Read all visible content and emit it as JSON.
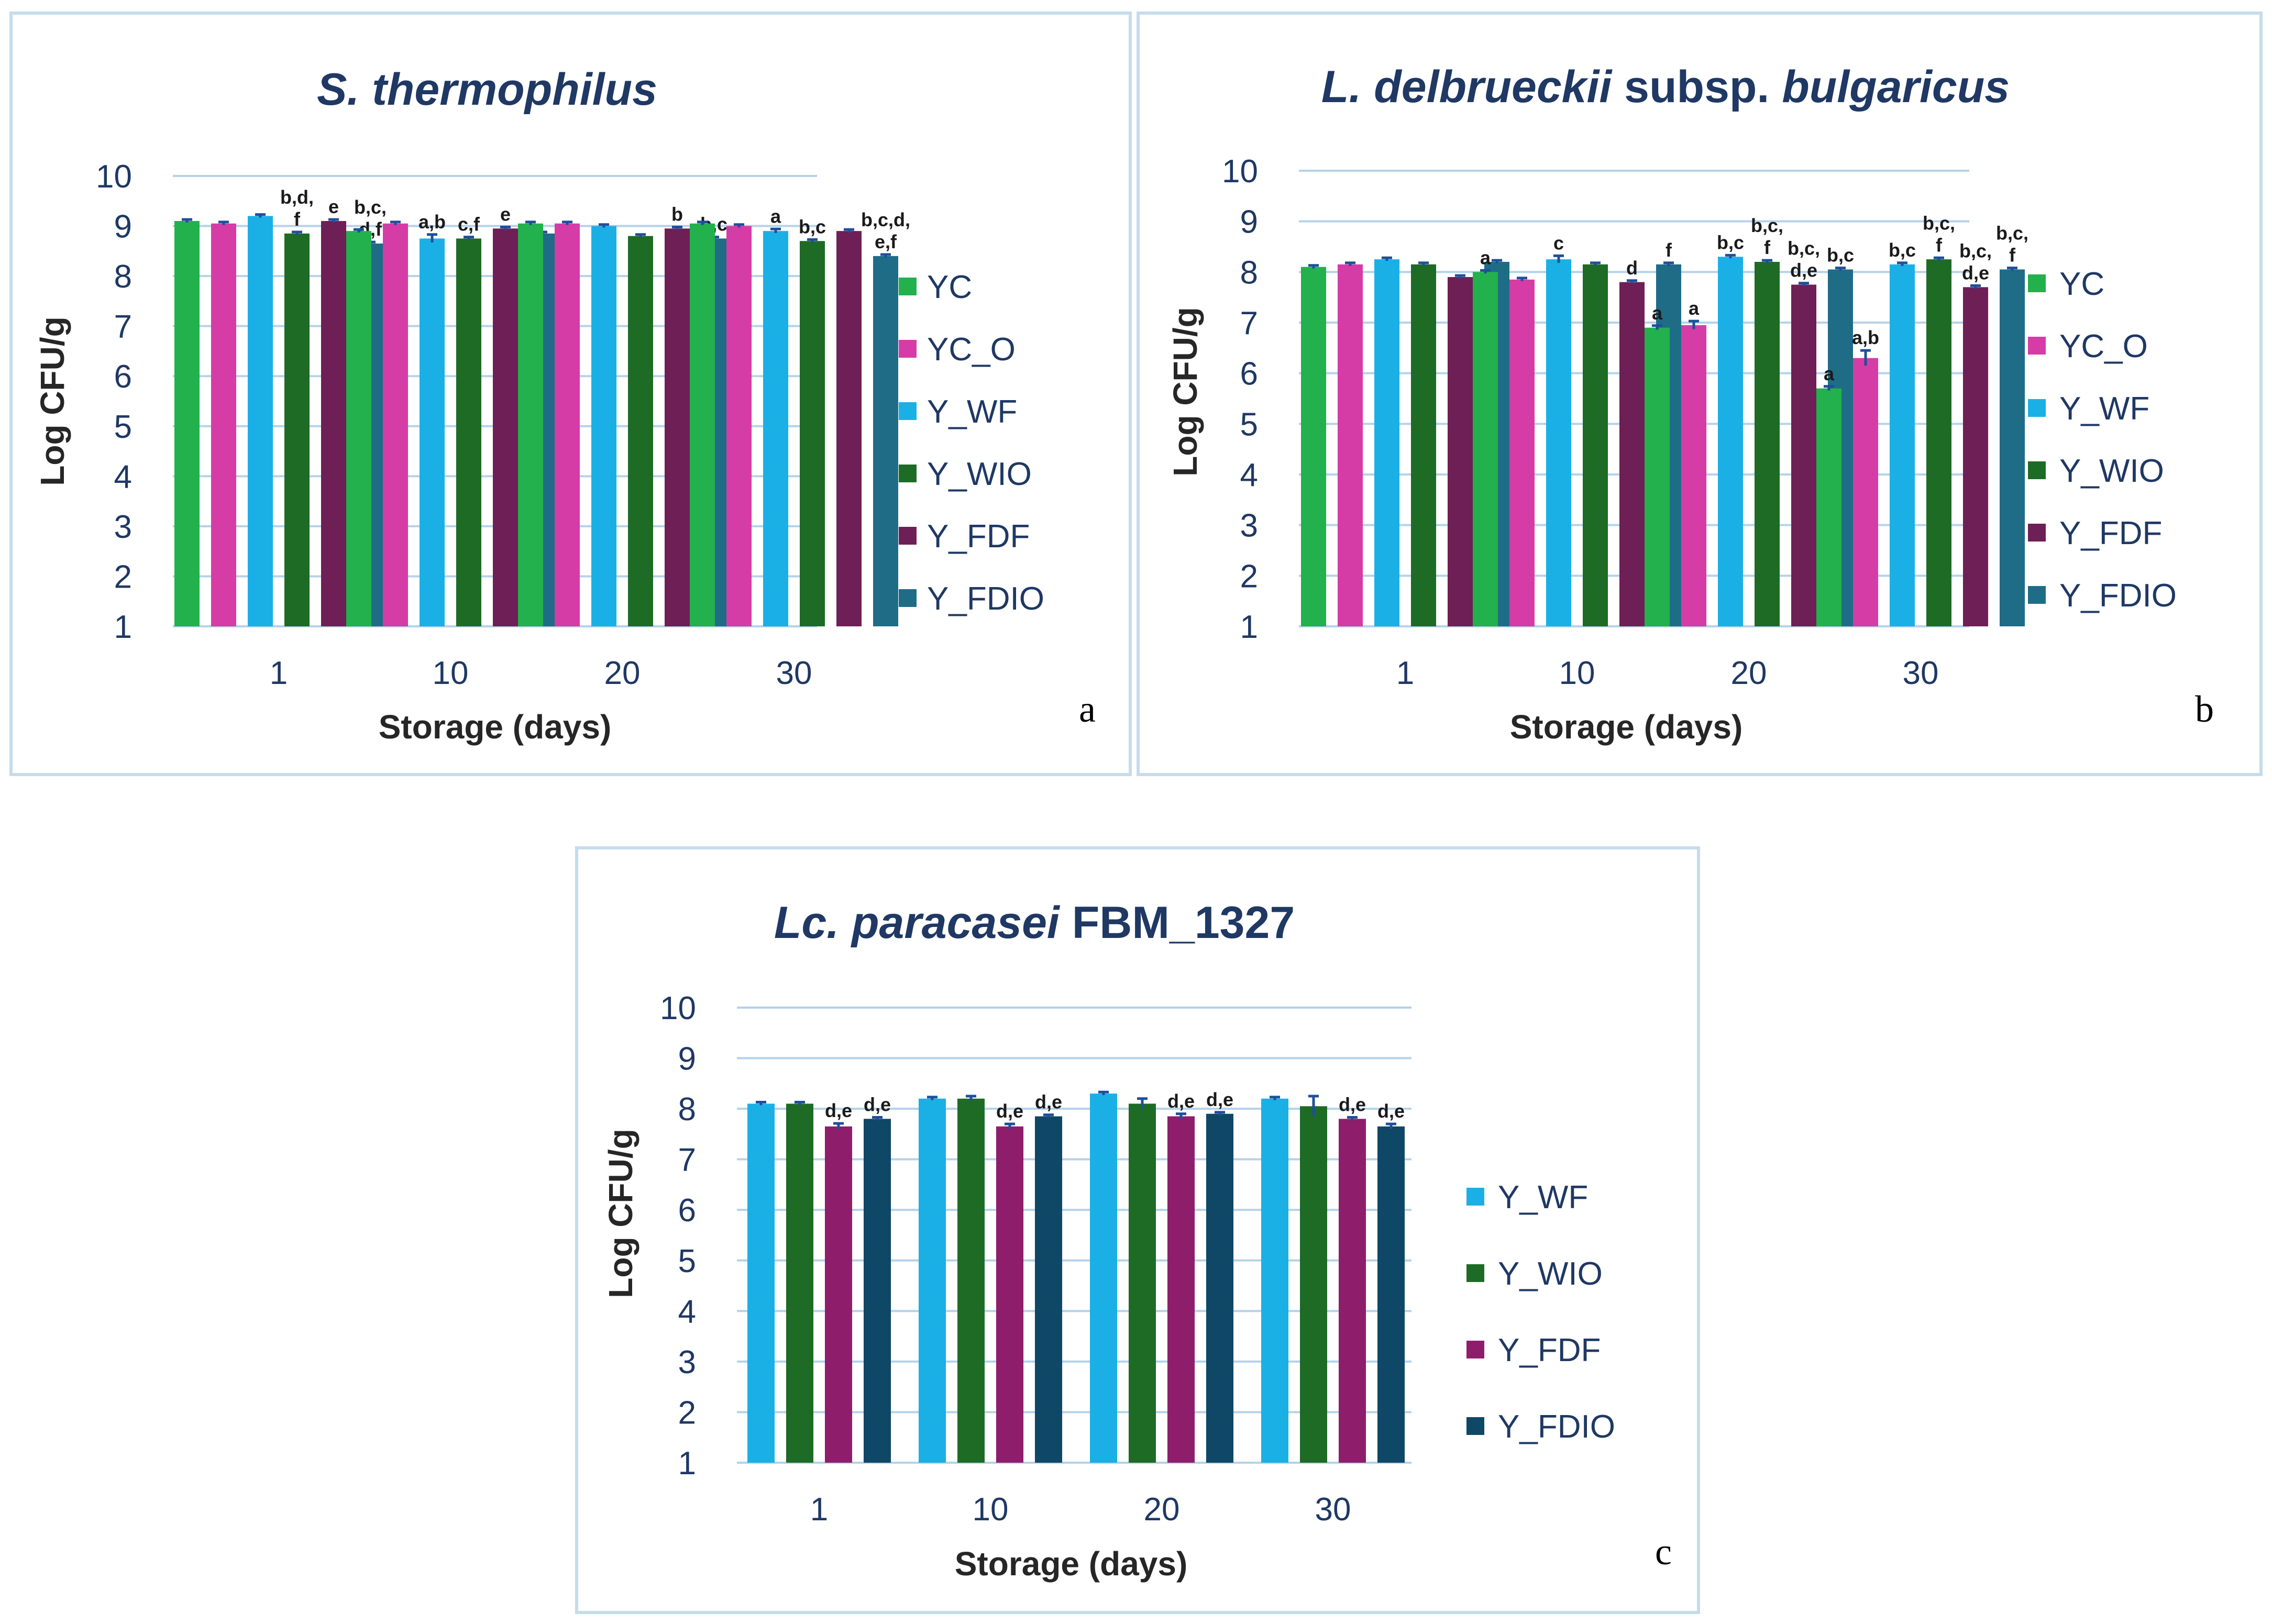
{
  "colors": {
    "YC": "#22b14c",
    "YC_O": "#d63ca6",
    "Y_WF": "#1ab0e6",
    "Y_WIO": "#1e6b25",
    "Y_FDF": "#6e1f55",
    "Y_FDIO": "#1f6c87",
    "Y_FDF_c": "#8e1d6c",
    "Y_FDIO_c": "#0f4766"
  },
  "chart_data": [
    {
      "panel_label": "a",
      "type": "bar",
      "title": "S. thermophilus",
      "title_parts": [
        {
          "text": "S. thermophilus",
          "italic": true
        }
      ],
      "xlabel": "Storage (days)",
      "ylabel": "Log CFU/g",
      "ylim": [
        1,
        10
      ],
      "yticks": [
        "1",
        "2",
        "3",
        "4",
        "5",
        "6",
        "7",
        "8",
        "9",
        "10"
      ],
      "categories": [
        "1",
        "10",
        "20",
        "30"
      ],
      "series": [
        {
          "name": "YC",
          "color_key": "YC",
          "values": [
            9.1,
            8.9,
            9.05,
            9.05
          ],
          "error": [
            0.03,
            0.03,
            0.03,
            0.03
          ],
          "labels": [
            "",
            "",
            "",
            ""
          ]
        },
        {
          "name": "YC_O",
          "color_key": "YC_O",
          "values": [
            9.05,
            9.05,
            9.05,
            9.0
          ],
          "error": [
            0.03,
            0.03,
            0.03,
            0.03
          ],
          "labels": [
            "",
            "",
            "",
            ""
          ]
        },
        {
          "name": "Y_WF",
          "color_key": "Y_WF",
          "values": [
            9.2,
            8.75,
            9.0,
            8.9
          ],
          "error": [
            0.03,
            0.08,
            0.03,
            0.04
          ],
          "labels": [
            "",
            "a,b",
            "",
            "a"
          ]
        },
        {
          "name": "Y_WIO",
          "color_key": "Y_WIO",
          "values": [
            8.85,
            8.75,
            8.8,
            8.7
          ],
          "error": [
            0.03,
            0.03,
            0.03,
            0.03
          ],
          "labels": [
            "b,d,|f",
            "c,f",
            "",
            "b,c"
          ]
        },
        {
          "name": "Y_FDF",
          "color_key": "Y_FDF",
          "values": [
            9.1,
            8.95,
            8.95,
            8.9
          ],
          "error": [
            0.03,
            0.03,
            0.03,
            0.03
          ],
          "labels": [
            "e",
            "e",
            "b",
            ""
          ]
        },
        {
          "name": "Y_FDIO",
          "color_key": "Y_FDIO",
          "values": [
            8.65,
            8.85,
            8.75,
            8.4
          ],
          "error": [
            0.03,
            0.03,
            0.03,
            0.03
          ],
          "labels": [
            "b,c,|d,f",
            "",
            "b,c",
            "b,c,d,|e,f"
          ]
        }
      ]
    },
    {
      "panel_label": "b",
      "type": "bar",
      "title": "L. delbrueckii subsp. bulgaricus",
      "title_parts": [
        {
          "text": "L. delbrueckii",
          "italic": true
        },
        {
          "text": " subsp. ",
          "italic": false
        },
        {
          "text": "bulgaricus",
          "italic": true
        }
      ],
      "xlabel": "Storage (days)",
      "ylabel": "Log CFU/g",
      "ylim": [
        1,
        10
      ],
      "yticks": [
        "1",
        "2",
        "3",
        "4",
        "5",
        "6",
        "7",
        "8",
        "9",
        "10"
      ],
      "categories": [
        "1",
        "10",
        "20",
        "30"
      ],
      "series": [
        {
          "name": "YC",
          "color_key": "YC",
          "values": [
            8.1,
            8.0,
            6.9,
            5.7
          ],
          "error": [
            0.03,
            0.03,
            0.04,
            0.04
          ],
          "labels": [
            "",
            "a",
            "a",
            "a"
          ]
        },
        {
          "name": "YC_O",
          "color_key": "YC_O",
          "values": [
            8.15,
            7.85,
            6.95,
            6.3
          ],
          "error": [
            0.03,
            0.03,
            0.08,
            0.15
          ],
          "labels": [
            "",
            "",
            "a",
            "a,b"
          ]
        },
        {
          "name": "Y_WF",
          "color_key": "Y_WF",
          "values": [
            8.25,
            8.25,
            8.3,
            8.15
          ],
          "error": [
            0.03,
            0.07,
            0.03,
            0.03
          ],
          "labels": [
            "",
            "c",
            "b,c",
            "b,c"
          ]
        },
        {
          "name": "Y_WIO",
          "color_key": "Y_WIO",
          "values": [
            8.15,
            8.15,
            8.2,
            8.25
          ],
          "error": [
            0.03,
            0.03,
            0.03,
            0.03
          ],
          "labels": [
            "",
            "",
            "b,c,|f",
            "b,c,|f"
          ]
        },
        {
          "name": "Y_FDF",
          "color_key": "Y_FDF",
          "values": [
            7.9,
            7.8,
            7.75,
            7.7
          ],
          "error": [
            0.03,
            0.03,
            0.03,
            0.03
          ],
          "labels": [
            "",
            "d",
            "b,c,|d,e",
            "b,c,|d,e"
          ]
        },
        {
          "name": "Y_FDIO",
          "color_key": "Y_FDIO",
          "values": [
            8.2,
            8.15,
            8.05,
            8.05
          ],
          "error": [
            0.03,
            0.03,
            0.03,
            0.03
          ],
          "labels": [
            "",
            "f",
            "b,c",
            "b,c,|f"
          ]
        }
      ]
    },
    {
      "panel_label": "c",
      "type": "bar",
      "title": "Lc. paracasei FBM_1327",
      "title_parts": [
        {
          "text": "Lc. paracasei",
          "italic": true
        },
        {
          "text": " FBM_1327",
          "italic": false
        }
      ],
      "xlabel": "Storage (days)",
      "ylabel": "Log CFU/g",
      "ylim": [
        1,
        10
      ],
      "yticks": [
        "1",
        "2",
        "3",
        "4",
        "5",
        "6",
        "7",
        "8",
        "9",
        "10"
      ],
      "categories": [
        "1",
        "10",
        "20",
        "30"
      ],
      "series": [
        {
          "name": "Y_WF",
          "color_key": "Y_WF",
          "values": [
            8.1,
            8.2,
            8.3,
            8.2
          ],
          "error": [
            0.03,
            0.03,
            0.03,
            0.03
          ],
          "labels": [
            "",
            "",
            "",
            ""
          ]
        },
        {
          "name": "Y_WIO",
          "color_key": "Y_WIO",
          "values": [
            8.1,
            8.2,
            8.1,
            8.05
          ],
          "error": [
            0.03,
            0.05,
            0.1,
            0.2
          ],
          "labels": [
            "",
            "",
            "",
            ""
          ]
        },
        {
          "name": "Y_FDF",
          "color_key": "Y_FDF_c",
          "values": [
            7.65,
            7.65,
            7.85,
            7.8
          ],
          "error": [
            0.06,
            0.05,
            0.05,
            0.03
          ],
          "labels": [
            "d,e",
            "d,e",
            "d,e",
            "d,e"
          ]
        },
        {
          "name": "Y_FDIO",
          "color_key": "Y_FDIO_c",
          "values": [
            7.8,
            7.85,
            7.9,
            7.65
          ],
          "error": [
            0.03,
            0.03,
            0.03,
            0.05
          ],
          "labels": [
            "d,e",
            "d,e",
            "d,e",
            "d,e"
          ]
        }
      ]
    }
  ]
}
